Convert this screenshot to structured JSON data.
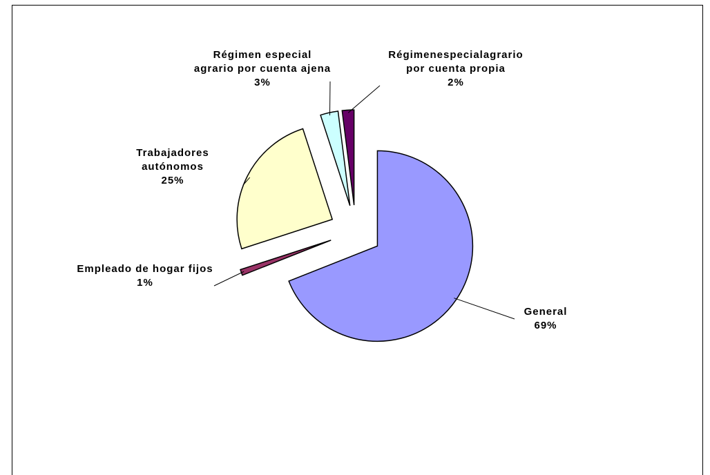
{
  "chart_data": {
    "type": "pie",
    "categories": [
      "General",
      "Empleado de hogar fijos",
      "Trabajadores autónomos",
      "Régimen especial agrario por cuenta ajena",
      "Régimenespecialagrario por cuenta propia"
    ],
    "values": [
      69,
      1,
      25,
      3,
      2
    ],
    "value_labels": [
      "69%",
      "1%",
      "25%",
      "3%",
      "2%"
    ],
    "colors": [
      "#9999ff",
      "#993366",
      "#ffffcc",
      "#ccffff",
      "#660066"
    ]
  }
}
